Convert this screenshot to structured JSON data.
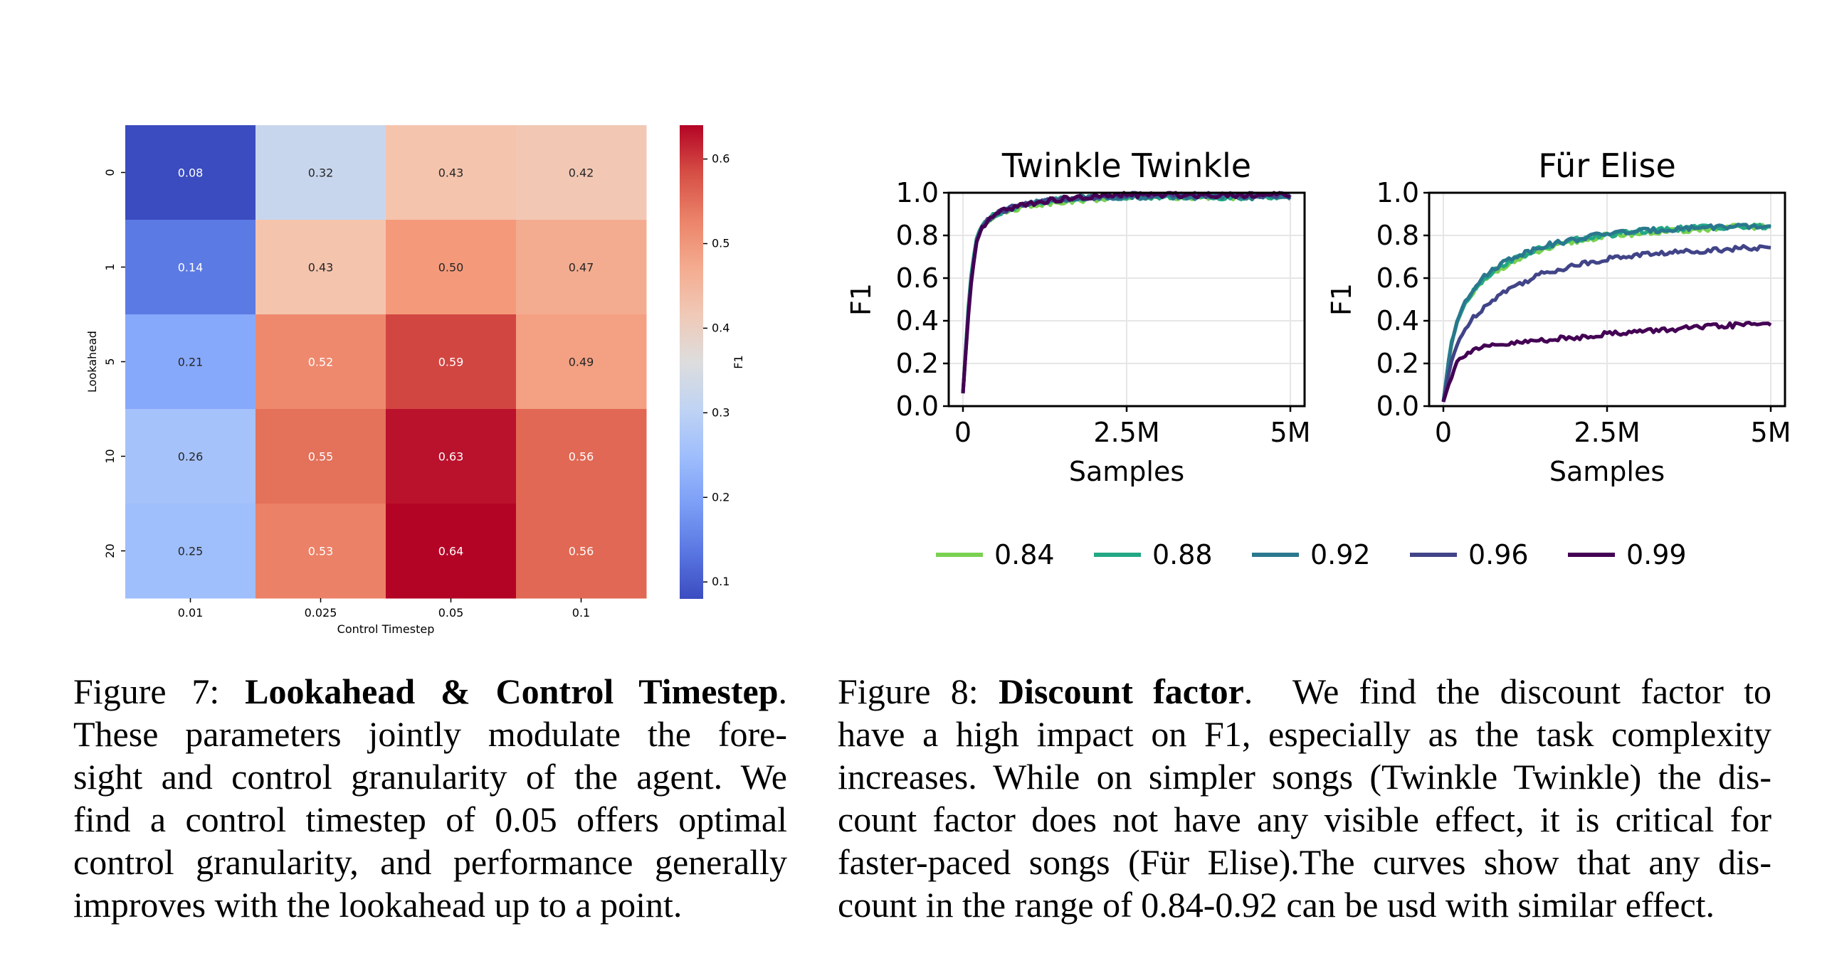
{
  "figure7": {
    "heatmap": {
      "xlabel": "Control Timestep",
      "ylabel": "Lookahead",
      "colorbar_label": "F1",
      "x_categories": [
        "0.01",
        "0.025",
        "0.05",
        "0.1"
      ],
      "y_categories": [
        "0",
        "1",
        "5",
        "10",
        "20"
      ],
      "values": [
        [
          0.08,
          0.32,
          0.43,
          0.42
        ],
        [
          0.14,
          0.43,
          0.5,
          0.47
        ],
        [
          0.21,
          0.52,
          0.59,
          0.49
        ],
        [
          0.26,
          0.55,
          0.63,
          0.56
        ],
        [
          0.25,
          0.53,
          0.64,
          0.56
        ]
      ],
      "value_labels": [
        [
          "0.08",
          "0.32",
          "0.43",
          "0.42"
        ],
        [
          "0.14",
          "0.43",
          "0.50",
          "0.47"
        ],
        [
          "0.21",
          "0.52",
          "0.59",
          "0.49"
        ],
        [
          "0.26",
          "0.55",
          "0.63",
          "0.56"
        ],
        [
          "0.25",
          "0.53",
          "0.64",
          "0.56"
        ]
      ],
      "colorbar_ticks": [
        "0.1",
        "0.2",
        "0.3",
        "0.4",
        "0.5",
        "0.6"
      ],
      "colorbar_tick_values": [
        0.1,
        0.2,
        0.3,
        0.4,
        0.5,
        0.6
      ],
      "vmin": 0.08,
      "vmax": 0.64,
      "colormap": "coolwarm"
    },
    "caption": {
      "label": "Figure 7:",
      "title": "Lookahead & Control Timestep",
      "lines": [
        "These parameters jointly modulate the fore-",
        "sight and control granularity of the agent. We",
        "find a control timestep of 0.05 offers optimal",
        "control granularity, and performance generally",
        "improves with the lookahead up to a point."
      ]
    }
  },
  "figure8": {
    "caption": {
      "label": "Figure 8:",
      "title": "Discount factor",
      "first_line_rest": "We find the discount factor to",
      "lines": [
        "have a high impact on F1, especially as the task complexity",
        "increases. While on simpler songs (Twinkle Twinkle) the dis-",
        "count factor does not have any visible effect, it is critical for",
        "faster-paced songs (Für Elise).The curves show that any dis-",
        "count in the range of 0.84-0.92 can be usd with similar effect."
      ]
    },
    "legend": [
      {
        "name": "0.84",
        "color": "#7ad151"
      },
      {
        "name": "0.88",
        "color": "#22a884"
      },
      {
        "name": "0.92",
        "color": "#2a788e"
      },
      {
        "name": "0.96",
        "color": "#414487"
      },
      {
        "name": "0.99",
        "color": "#440154"
      }
    ]
  },
  "chart_data": [
    {
      "type": "heatmap",
      "title": "",
      "xlabel": "Control Timestep",
      "ylabel": "Lookahead",
      "x": [
        "0.01",
        "0.025",
        "0.05",
        "0.1"
      ],
      "y": [
        "0",
        "1",
        "5",
        "10",
        "20"
      ],
      "values": [
        [
          0.08,
          0.32,
          0.43,
          0.42
        ],
        [
          0.14,
          0.43,
          0.5,
          0.47
        ],
        [
          0.21,
          0.52,
          0.59,
          0.49
        ],
        [
          0.26,
          0.55,
          0.63,
          0.56
        ],
        [
          0.25,
          0.53,
          0.64,
          0.56
        ]
      ],
      "colorbar_label": "F1"
    },
    {
      "type": "line",
      "title": "Twinkle Twinkle",
      "xlabel": "Samples",
      "ylabel": "F1",
      "xlim": [
        0,
        5000000
      ],
      "ylim": [
        0,
        1.0
      ],
      "x_ticks": [
        "0",
        "2.5M",
        "5M"
      ],
      "y_ticks": [
        "0.0",
        "0.2",
        "0.4",
        "0.6",
        "0.8",
        "1.0"
      ],
      "grid": true,
      "x": [
        0,
        100000,
        200000,
        300000,
        500000,
        750000,
        1000000,
        1500000,
        2000000,
        2500000,
        3000000,
        3500000,
        4000000,
        4500000,
        5000000
      ],
      "series": [
        {
          "name": "0.84",
          "values": [
            0.06,
            0.55,
            0.78,
            0.85,
            0.9,
            0.92,
            0.94,
            0.96,
            0.97,
            0.98,
            0.98,
            0.98,
            0.98,
            0.98,
            0.98
          ]
        },
        {
          "name": "0.88",
          "values": [
            0.06,
            0.55,
            0.78,
            0.86,
            0.9,
            0.93,
            0.95,
            0.97,
            0.98,
            0.98,
            0.98,
            0.98,
            0.98,
            0.98,
            0.98
          ]
        },
        {
          "name": "0.92",
          "values": [
            0.06,
            0.53,
            0.77,
            0.85,
            0.9,
            0.93,
            0.95,
            0.97,
            0.98,
            0.98,
            0.98,
            0.98,
            0.98,
            0.98,
            0.98
          ]
        },
        {
          "name": "0.96",
          "values": [
            0.06,
            0.52,
            0.76,
            0.85,
            0.9,
            0.93,
            0.95,
            0.97,
            0.98,
            0.99,
            0.99,
            0.99,
            0.99,
            0.99,
            0.99
          ]
        },
        {
          "name": "0.99",
          "values": [
            0.06,
            0.5,
            0.75,
            0.84,
            0.9,
            0.93,
            0.95,
            0.97,
            0.98,
            0.99,
            0.99,
            0.99,
            0.99,
            0.99,
            0.99
          ]
        }
      ]
    },
    {
      "type": "line",
      "title": "Für Elise",
      "xlabel": "Samples",
      "ylabel": "F1",
      "xlim": [
        0,
        5000000
      ],
      "ylim": [
        0,
        1.0
      ],
      "x_ticks": [
        "0",
        "2.5M",
        "5M"
      ],
      "y_ticks": [
        "0.0",
        "0.2",
        "0.4",
        "0.6",
        "0.8",
        "1.0"
      ],
      "grid": true,
      "x": [
        0,
        100000,
        200000,
        300000,
        500000,
        750000,
        1000000,
        1500000,
        2000000,
        2500000,
        3000000,
        3500000,
        4000000,
        4500000,
        5000000
      ],
      "series": [
        {
          "name": "0.84",
          "values": [
            0.02,
            0.25,
            0.38,
            0.46,
            0.55,
            0.62,
            0.67,
            0.73,
            0.77,
            0.8,
            0.81,
            0.82,
            0.83,
            0.84,
            0.84
          ]
        },
        {
          "name": "0.88",
          "values": [
            0.02,
            0.26,
            0.39,
            0.47,
            0.56,
            0.63,
            0.68,
            0.74,
            0.78,
            0.8,
            0.82,
            0.83,
            0.84,
            0.84,
            0.84
          ]
        },
        {
          "name": "0.92",
          "values": [
            0.02,
            0.26,
            0.39,
            0.48,
            0.57,
            0.64,
            0.69,
            0.75,
            0.78,
            0.81,
            0.82,
            0.83,
            0.84,
            0.84,
            0.84
          ]
        },
        {
          "name": "0.96",
          "values": [
            0.02,
            0.18,
            0.28,
            0.35,
            0.43,
            0.5,
            0.55,
            0.62,
            0.66,
            0.69,
            0.71,
            0.72,
            0.73,
            0.74,
            0.74
          ]
        },
        {
          "name": "0.99",
          "values": [
            0.02,
            0.12,
            0.2,
            0.24,
            0.27,
            0.28,
            0.29,
            0.31,
            0.32,
            0.34,
            0.35,
            0.36,
            0.37,
            0.38,
            0.39
          ]
        }
      ]
    }
  ]
}
